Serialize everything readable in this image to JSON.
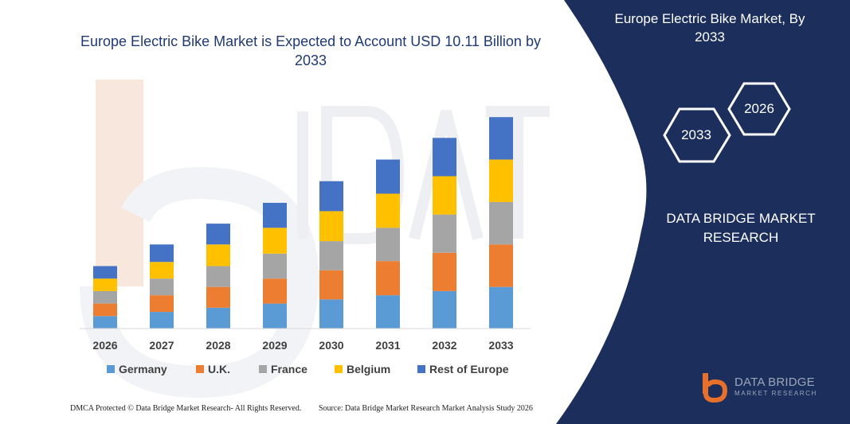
{
  "chart_data": {
    "type": "bar",
    "stacked": true,
    "title": "Europe Electric Bike Market is Expected to Account USD 10.11 Billion by 2033",
    "categories": [
      "2026",
      "2027",
      "2028",
      "2029",
      "2030",
      "2031",
      "2032",
      "2033"
    ],
    "series": [
      {
        "name": "Germany",
        "color": "#5b9bd5",
        "values": [
          15,
          20,
          25,
          30,
          35,
          40,
          45,
          50
        ]
      },
      {
        "name": "U.K.",
        "color": "#ed7d31",
        "values": [
          15,
          20,
          25,
          30,
          35,
          41,
          46,
          51
        ]
      },
      {
        "name": "France",
        "color": "#a5a5a5",
        "values": [
          15,
          20,
          25,
          30,
          35,
          40,
          46,
          51
        ]
      },
      {
        "name": "Belgium",
        "color": "#ffc000",
        "values": [
          15,
          20,
          26,
          31,
          36,
          41,
          46,
          51
        ]
      },
      {
        "name": "Rest of Europe",
        "color": "#4472c4",
        "values": [
          15,
          21,
          25,
          30,
          36,
          41,
          46,
          51
        ]
      }
    ],
    "legend_position": "bottom",
    "grid": false
  },
  "panel": {
    "title": "Europe Electric Bike Market, By 2033",
    "hex_a": "2026",
    "hex_b": "2033",
    "brand": "DATA BRIDGE MARKET RESEARCH"
  },
  "logo": {
    "name": "DATA BRIDGE",
    "sub": "MARKET RESEARCH"
  },
  "footer": {
    "left": "DMCA Protected © Data Bridge Market Research- All Rights Reserved.",
    "right": "Source: Data Bridge Market Research Market Analysis Study 2026"
  },
  "colors": {
    "navy": "#1c2f5c",
    "title_blue": "#1f3a73"
  }
}
